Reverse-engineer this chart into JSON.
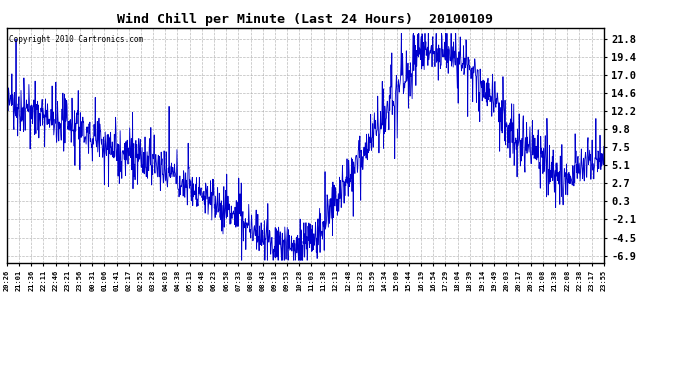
{
  "title": "Wind Chill per Minute (Last 24 Hours)  20100109",
  "copyright": "Copyright 2010 Cartronics.com",
  "line_color": "#0000cc",
  "background_color": "#ffffff",
  "plot_bg_color": "#ffffff",
  "grid_color": "#aaaaaa",
  "yticks": [
    21.8,
    19.4,
    17.0,
    14.6,
    12.2,
    9.8,
    7.5,
    5.1,
    2.7,
    0.3,
    -2.1,
    -4.5,
    -6.9
  ],
  "ylim": [
    -7.8,
    23.2
  ],
  "xtick_labels": [
    "20:26",
    "21:01",
    "21:36",
    "22:11",
    "22:46",
    "23:21",
    "23:56",
    "00:31",
    "01:06",
    "01:41",
    "02:17",
    "02:52",
    "03:28",
    "04:03",
    "04:38",
    "05:13",
    "05:48",
    "06:23",
    "06:58",
    "07:33",
    "08:08",
    "08:43",
    "09:18",
    "09:53",
    "10:28",
    "11:03",
    "11:38",
    "12:13",
    "12:48",
    "13:23",
    "13:59",
    "14:34",
    "15:09",
    "15:44",
    "16:19",
    "16:54",
    "17:29",
    "18:04",
    "18:39",
    "19:14",
    "19:49",
    "20:03",
    "20:17",
    "20:38",
    "21:08",
    "21:38",
    "22:08",
    "22:38",
    "23:17",
    "23:55"
  ],
  "figsize": [
    6.9,
    3.75
  ],
  "dpi": 100
}
